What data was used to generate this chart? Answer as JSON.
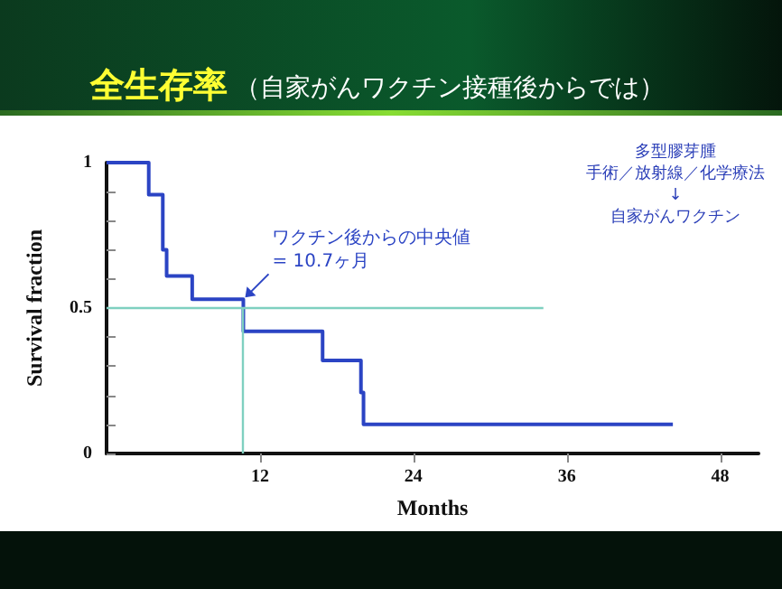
{
  "chart_data": {
    "type": "step",
    "title": "全生存率",
    "subtitle": "（自家がんワクチン接種後からでは）",
    "xlabel": "Months",
    "ylabel": "Survival fraction",
    "x": [
      0,
      3.3,
      4.4,
      4.7,
      6.7,
      10.7,
      16.9,
      19.9,
      20.1,
      44.3
    ],
    "series": [
      {
        "color": "#2b44c4",
        "values": [
          1,
          0.89,
          0.7,
          0.61,
          0.53,
          0.42,
          0.32,
          0.21,
          0.1,
          0.1
        ]
      }
    ],
    "xlim": [
      0,
      51
    ],
    "xticks": [
      12,
      24,
      36,
      48
    ],
    "ylim": [
      0,
      1
    ],
    "yticks": [
      0,
      {
        "value": 0.1,
        "label": null
      },
      {
        "value": 0.2,
        "label": null
      },
      {
        "value": 0.3,
        "label": null
      },
      {
        "value": 0.4,
        "label": null
      },
      0.5,
      {
        "value": 0.6,
        "label": null
      },
      {
        "value": 0.7,
        "label": null
      },
      {
        "value": 0.8,
        "label": null
      },
      {
        "value": 0.9,
        "label": null
      },
      1
    ],
    "ref_lines": [
      {
        "axis": "y",
        "value": 0.5,
        "color": "#7fd0c0"
      },
      {
        "axis": "x",
        "value": 10.7,
        "color": "#7fd0c0"
      }
    ],
    "annotations": [
      {
        "text": "ワクチン後からの中央値\n= 10.7ヶ月",
        "x": 10.7,
        "y": 0.53
      },
      "多型膠芽腫",
      "手術／放射線／化学療法",
      "↓",
      "自家がんワクチン"
    ],
    "grid": false,
    "marker": "none",
    "line_style": "solid"
  }
}
